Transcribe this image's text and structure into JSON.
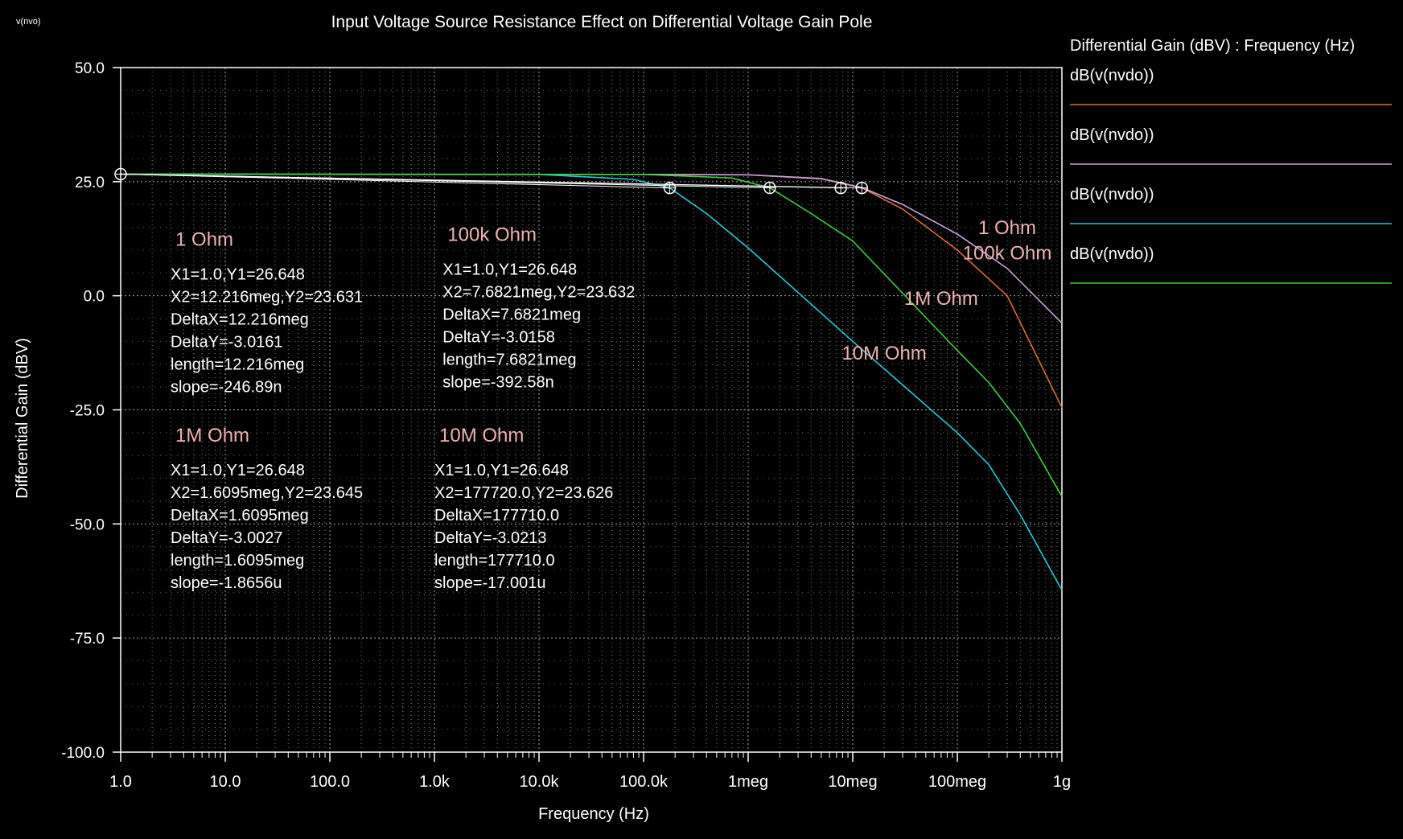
{
  "window": {
    "corner_label": "v(nvo)"
  },
  "chart_data": {
    "type": "line",
    "title": "Input Voltage Source Resistance Effect on Differential Voltage Gain Pole",
    "xlabel": "Frequency (Hz)",
    "ylabel": "Differential Gain (dBV)",
    "x_scale": "log",
    "xlim": [
      1,
      1000000000
    ],
    "ylim": [
      -100,
      50
    ],
    "grid": true,
    "legend_position": "right",
    "legend_title": "Differential Gain (dBV) : Frequency (Hz)",
    "x_ticks": [
      {
        "value": 1,
        "label": "1.0"
      },
      {
        "value": 10,
        "label": "10.0"
      },
      {
        "value": 100,
        "label": "100.0"
      },
      {
        "value": 1000,
        "label": "1.0k"
      },
      {
        "value": 10000,
        "label": "10.0k"
      },
      {
        "value": 100000,
        "label": "100.0k"
      },
      {
        "value": 1000000,
        "label": "1meg"
      },
      {
        "value": 10000000,
        "label": "10meg"
      },
      {
        "value": 100000000,
        "label": "100meg"
      },
      {
        "value": 1000000000,
        "label": "1g"
      }
    ],
    "y_ticks": [
      {
        "value": 50,
        "label": "50.0"
      },
      {
        "value": 25,
        "label": "25.0"
      },
      {
        "value": 0,
        "label": "0.0"
      },
      {
        "value": -25,
        "label": "-25.0"
      },
      {
        "value": -50,
        "label": "-50.0"
      },
      {
        "value": -75,
        "label": "-75.0"
      },
      {
        "value": -100,
        "label": "-100.0"
      }
    ],
    "series": [
      {
        "name": "dB(v(nvdo))",
        "color": "#e06a3a",
        "x": [
          1,
          1000,
          100000,
          1000000,
          5000000,
          12216000,
          30000000,
          100000000,
          300000000,
          1000000000
        ],
        "y": [
          26.65,
          26.6,
          26.6,
          26.5,
          25.6,
          23.63,
          19.0,
          10.0,
          0.0,
          -24.5
        ]
      },
      {
        "name": "dB(v(nvdo))",
        "color": "#c8a0e0",
        "x": [
          1,
          1000,
          100000,
          1000000,
          5000000,
          12216000,
          30000000,
          100000000,
          300000000,
          1000000000
        ],
        "y": [
          26.65,
          26.6,
          26.6,
          26.5,
          25.7,
          23.7,
          20.0,
          13.5,
          6.0,
          -6.0
        ]
      },
      {
        "name": "dB(v(nvdo))",
        "color": "#28c8d8",
        "x": [
          1,
          10000,
          80000,
          177720,
          400000,
          1000000,
          10000000,
          100000000,
          200000000,
          400000000,
          1000000000
        ],
        "y": [
          26.65,
          26.6,
          25.5,
          23.63,
          18.0,
          10.5,
          -10.0,
          -30.0,
          -37.0,
          -48.0,
          -64.5
        ]
      },
      {
        "name": "dB(v(nvdo))",
        "color": "#3cd03c",
        "x": [
          1,
          100000,
          700000,
          1609500,
          4000000,
          10000000,
          100000000,
          200000000,
          400000000,
          1000000000
        ],
        "y": [
          26.65,
          26.6,
          25.8,
          23.65,
          18.0,
          12.0,
          -12.0,
          -19.0,
          -28.0,
          -44.0
        ]
      }
    ],
    "curve_labels": [
      {
        "text": "1 Ohm",
        "color": "#f0b0b0",
        "x": 300000000,
        "y": 13.5
      },
      {
        "text": "100k Ohm",
        "color": "#f0b0b0",
        "x": 300000000,
        "y": 8
      },
      {
        "text": "1M Ohm",
        "color": "#f0b0b0",
        "x": 70000000,
        "y": -2
      },
      {
        "text": "10M Ohm",
        "color": "#f0b0b0",
        "x": 20000000,
        "y": -14
      }
    ],
    "markers": [
      {
        "x": 1,
        "y": 26.648
      },
      {
        "x": 177720,
        "y": 23.626
      },
      {
        "x": 1609500,
        "y": 23.645
      },
      {
        "x": 7682100,
        "y": 23.632
      },
      {
        "x": 12216000,
        "y": 23.631
      }
    ],
    "annotations": [
      {
        "title": "1 Ohm",
        "x": 3,
        "y": 11,
        "lines": [
          "X1=1.0,Y1=26.648",
          "X2=12.216meg,Y2=23.631",
          "DeltaX=12.216meg",
          "DeltaY=-3.0161",
          "length=12.216meg",
          "slope=-246.89n"
        ]
      },
      {
        "title": "100k Ohm",
        "x": 1200,
        "y": 12,
        "lines": [
          "X1=1.0,Y1=26.648",
          "X2=7.6821meg,Y2=23.632",
          "DeltaX=7.6821meg",
          "DeltaY=-3.0158",
          "length=7.6821meg",
          "slope=-392.58n"
        ]
      },
      {
        "title": "1M Ohm",
        "x": 3,
        "y": -32,
        "lines": [
          "X1=1.0,Y1=26.648",
          "X2=1.6095meg,Y2=23.645",
          "DeltaX=1.6095meg",
          "DeltaY=-3.0027",
          "length=1.6095meg",
          "slope=-1.8656u"
        ]
      },
      {
        "title": "10M Ohm",
        "x": 1000,
        "y": -32,
        "lines": [
          "X1=1.0,Y1=26.648",
          "X2=177720.0,Y2=23.626",
          "DeltaX=177710.0",
          "DeltaY=-3.0213",
          "length=177710.0",
          "slope=-17.001u"
        ]
      }
    ]
  }
}
